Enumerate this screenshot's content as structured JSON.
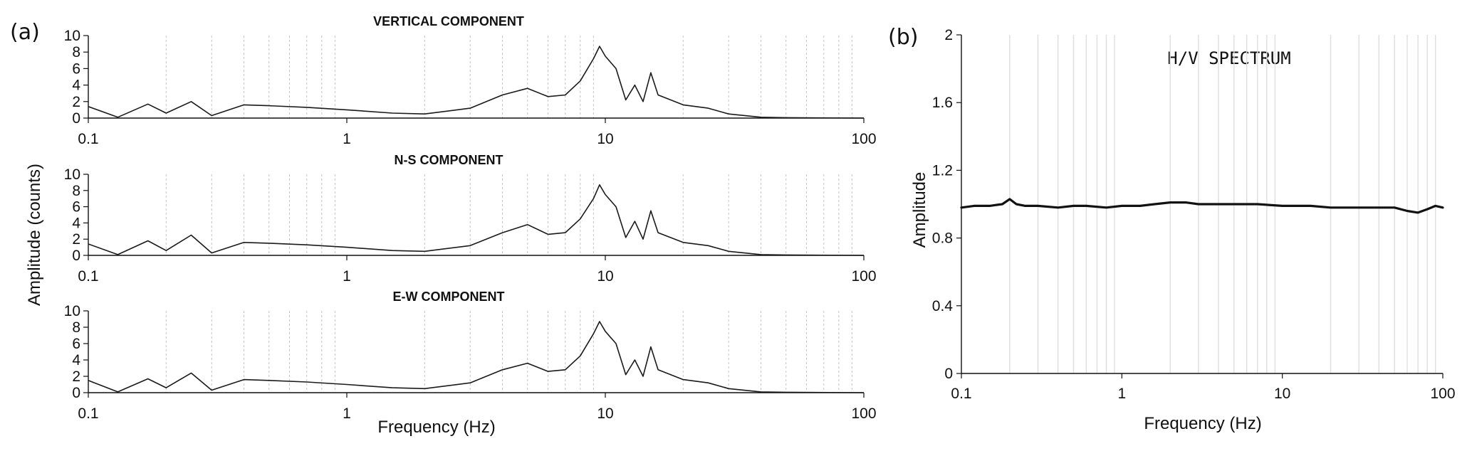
{
  "panels": {
    "a_label": "(a)",
    "b_label": "(b)"
  },
  "chart_data": [
    {
      "type": "line",
      "panel": "(a)",
      "shared_ylabel": "Amplitude (counts)",
      "shared_xlabel": "Frequency (Hz)",
      "xscale": "log",
      "xlim": [
        0.1,
        100
      ],
      "xticks": [
        "0.1",
        "1",
        "10",
        "100"
      ],
      "ylim": [
        0,
        10
      ],
      "yticks": [
        "0",
        "2",
        "4",
        "6",
        "8",
        "10"
      ],
      "grid": "vertical dashed",
      "subplots": [
        {
          "title": "VERTICAL COMPONENT",
          "series": [
            {
              "x": [
                0.1,
                0.13,
                0.17,
                0.2,
                0.25,
                0.3,
                0.4,
                0.5,
                0.7,
                1.0,
                1.5,
                2.0,
                3.0,
                4.0,
                5.0,
                6.0,
                7.0,
                8.0,
                9.0,
                9.5,
                10.0,
                11.0,
                12.0,
                13.0,
                14.0,
                15.0,
                16.0,
                20.0,
                25.0,
                30.0,
                40.0,
                50.0,
                100.0
              ],
              "y": [
                1.4,
                0.1,
                1.7,
                0.6,
                2.0,
                0.3,
                1.6,
                1.5,
                1.3,
                1.0,
                0.6,
                0.5,
                1.2,
                2.8,
                3.6,
                2.6,
                2.8,
                4.5,
                7.2,
                8.7,
                7.5,
                6.0,
                2.2,
                4.0,
                2.0,
                5.5,
                2.8,
                1.6,
                1.2,
                0.5,
                0.1,
                0.05,
                0.0
              ]
            }
          ]
        },
        {
          "title": "N-S COMPONENT",
          "series": [
            {
              "x": [
                0.1,
                0.13,
                0.17,
                0.2,
                0.25,
                0.3,
                0.4,
                0.5,
                0.7,
                1.0,
                1.5,
                2.0,
                3.0,
                4.0,
                5.0,
                6.0,
                7.0,
                8.0,
                9.0,
                9.5,
                10.0,
                11.0,
                12.0,
                13.0,
                14.0,
                15.0,
                16.0,
                20.0,
                25.0,
                30.0,
                40.0,
                50.0,
                100.0
              ],
              "y": [
                1.4,
                0.1,
                1.8,
                0.6,
                2.5,
                0.3,
                1.6,
                1.5,
                1.3,
                1.0,
                0.6,
                0.5,
                1.2,
                2.8,
                3.8,
                2.6,
                2.8,
                4.5,
                7.0,
                8.7,
                7.5,
                6.0,
                2.2,
                4.2,
                2.0,
                5.5,
                2.8,
                1.6,
                1.2,
                0.5,
                0.1,
                0.05,
                0.0
              ]
            }
          ]
        },
        {
          "title": "E-W COMPONENT",
          "series": [
            {
              "x": [
                0.1,
                0.13,
                0.17,
                0.2,
                0.25,
                0.3,
                0.4,
                0.5,
                0.7,
                1.0,
                1.5,
                2.0,
                3.0,
                4.0,
                5.0,
                6.0,
                7.0,
                8.0,
                9.0,
                9.5,
                10.0,
                11.0,
                12.0,
                13.0,
                14.0,
                15.0,
                16.0,
                20.0,
                25.0,
                30.0,
                40.0,
                50.0,
                100.0
              ],
              "y": [
                1.5,
                0.1,
                1.7,
                0.6,
                2.4,
                0.3,
                1.6,
                1.5,
                1.3,
                1.0,
                0.6,
                0.5,
                1.2,
                2.8,
                3.6,
                2.6,
                2.8,
                4.5,
                7.2,
                8.7,
                7.5,
                6.0,
                2.2,
                4.0,
                2.0,
                5.6,
                2.8,
                1.6,
                1.2,
                0.5,
                0.1,
                0.05,
                0.0
              ]
            }
          ]
        }
      ]
    },
    {
      "type": "line",
      "panel": "(b)",
      "title": "H/V SPECTRUM",
      "xlabel": "Frequency (Hz)",
      "ylabel": "Amplitude",
      "xscale": "log",
      "xlim": [
        0.1,
        100
      ],
      "xticks": [
        "0.1",
        "1",
        "10",
        "100"
      ],
      "ylim": [
        0,
        2
      ],
      "yticks": [
        "0",
        "0.4",
        "0.8",
        "1.2",
        "1.6",
        "2"
      ],
      "grid": "vertical solid",
      "series": [
        {
          "x": [
            0.1,
            0.12,
            0.15,
            0.18,
            0.2,
            0.22,
            0.25,
            0.3,
            0.4,
            0.5,
            0.6,
            0.8,
            1.0,
            1.3,
            1.6,
            2.0,
            2.5,
            3.0,
            5.0,
            7.0,
            10.0,
            15.0,
            20.0,
            30.0,
            40.0,
            50.0,
            60.0,
            70.0,
            80.0,
            90.0,
            100.0
          ],
          "y": [
            0.98,
            0.99,
            0.99,
            1.0,
            1.03,
            1.0,
            0.99,
            0.99,
            0.98,
            0.99,
            0.99,
            0.98,
            0.99,
            0.99,
            1.0,
            1.01,
            1.01,
            1.0,
            1.0,
            1.0,
            0.99,
            0.99,
            0.98,
            0.98,
            0.98,
            0.98,
            0.96,
            0.95,
            0.97,
            0.99,
            0.98
          ]
        }
      ]
    }
  ]
}
